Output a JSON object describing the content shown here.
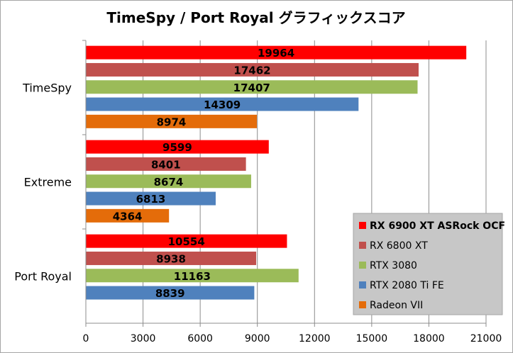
{
  "chart_data": {
    "type": "bar",
    "orientation": "horizontal",
    "title": "TimeSpy / Port Royal グラフィックスコア",
    "categories": [
      "TimeSpy",
      "Extreme",
      "Port Royal"
    ],
    "series": [
      {
        "name": "RX 6900 XT ASRock OCF",
        "color": "#ff0000",
        "values": [
          19964,
          9599,
          10554
        ]
      },
      {
        "name": "RX 6800 XT",
        "color": "#c0504d",
        "values": [
          17462,
          8401,
          8938
        ]
      },
      {
        "name": "RTX 3080",
        "color": "#9bbb59",
        "values": [
          17407,
          8674,
          11163
        ]
      },
      {
        "name": "RTX 2080 Ti FE",
        "color": "#4f81bd",
        "values": [
          14309,
          6813,
          8839
        ]
      },
      {
        "name": "Radeon VII",
        "color": "#e46c0a",
        "values": [
          8974,
          4364,
          null
        ]
      }
    ],
    "xlim": [
      0,
      21000
    ],
    "xticks": [
      "0",
      "3000",
      "6000",
      "9000",
      "12000",
      "15000",
      "18000",
      "21000"
    ],
    "grid": true,
    "legend_position": "bottom-right",
    "legend_bold_first": true
  }
}
